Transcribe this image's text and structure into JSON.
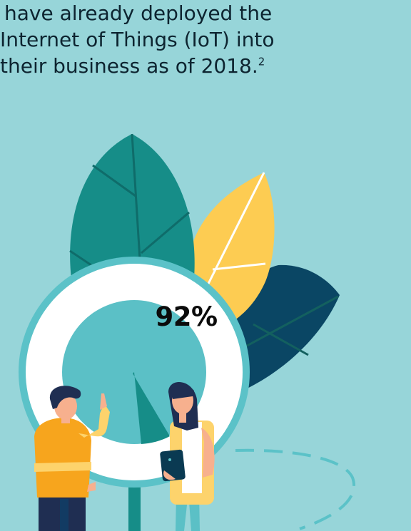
{
  "headline": {
    "line1": "have already deployed the",
    "line2": "Internet of Things (IoT) into",
    "line3": "their business as of 2018.",
    "footnote_marker": "2"
  },
  "stat": {
    "value_label": "92%",
    "value_fraction": 0.92
  },
  "colors": {
    "background": "#97d5d9",
    "teal_leaf": "#168d88",
    "yellow_leaf": "#fdcc52",
    "navy_leaf": "#0a4664",
    "ring": "#5bc2c8",
    "dial_fill": "#5bc0c6",
    "orange_shirt": "#f7a51d",
    "text": "#0d2430"
  },
  "icons": [
    "teal-leaf",
    "yellow-leaf",
    "navy-leaf",
    "donut-gauge",
    "man-figure",
    "woman-figure",
    "tablet-icon"
  ]
}
